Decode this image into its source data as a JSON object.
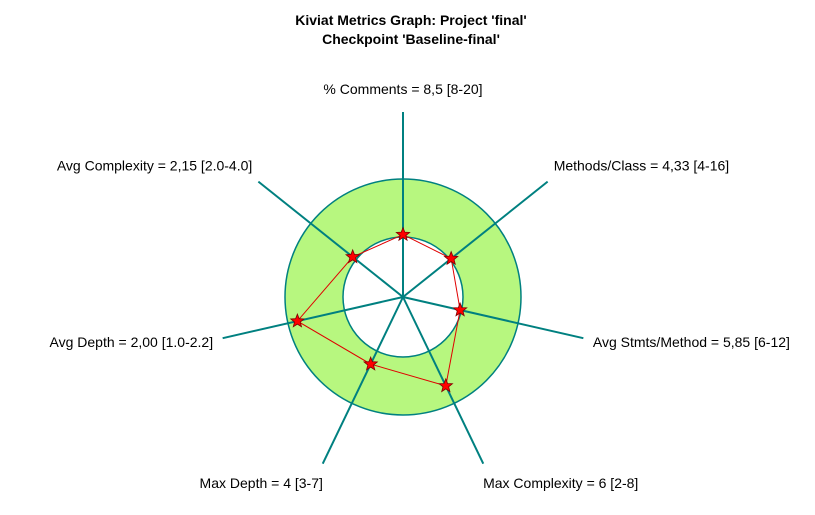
{
  "chart_data": {
    "type": "radar",
    "title": "Kiviat Metrics Graph: Project 'final'",
    "subtitle": "Checkpoint 'Baseline-final'",
    "colors": {
      "band_fill": "#b7f77f",
      "band_stroke": "#008080",
      "spoke": "#008080",
      "polygon": "#e00000",
      "marker": "#ff0000"
    },
    "axes": [
      {
        "label": "% Comments = 8,5 [8-20]",
        "name": "% Comments",
        "value": 8.5,
        "min": 8,
        "max": 20
      },
      {
        "label": "Methods/Class = 4,33 [4-16]",
        "name": "Methods/Class",
        "value": 4.33,
        "min": 4,
        "max": 16
      },
      {
        "label": "Avg Stmts/Method = 5,85 [6-12]",
        "name": "Avg Stmts/Method",
        "value": 5.85,
        "min": 6,
        "max": 12
      },
      {
        "label": "Max Complexity = 6 [2-8]",
        "name": "Max Complexity",
        "value": 6,
        "min": 2,
        "max": 8
      },
      {
        "label": "Max Depth = 4 [3-7]",
        "name": "Max Depth",
        "value": 4,
        "min": 3,
        "max": 7
      },
      {
        "label": "Avg Depth = 2,00 [1.0-2.2]",
        "name": "Avg Depth",
        "value": 2.0,
        "min": 1.0,
        "max": 2.2
      },
      {
        "label": "Avg Complexity = 2,15 [2.0-4.0]",
        "name": "Avg Complexity",
        "value": 2.15,
        "min": 2.0,
        "max": 4.0
      }
    ]
  }
}
